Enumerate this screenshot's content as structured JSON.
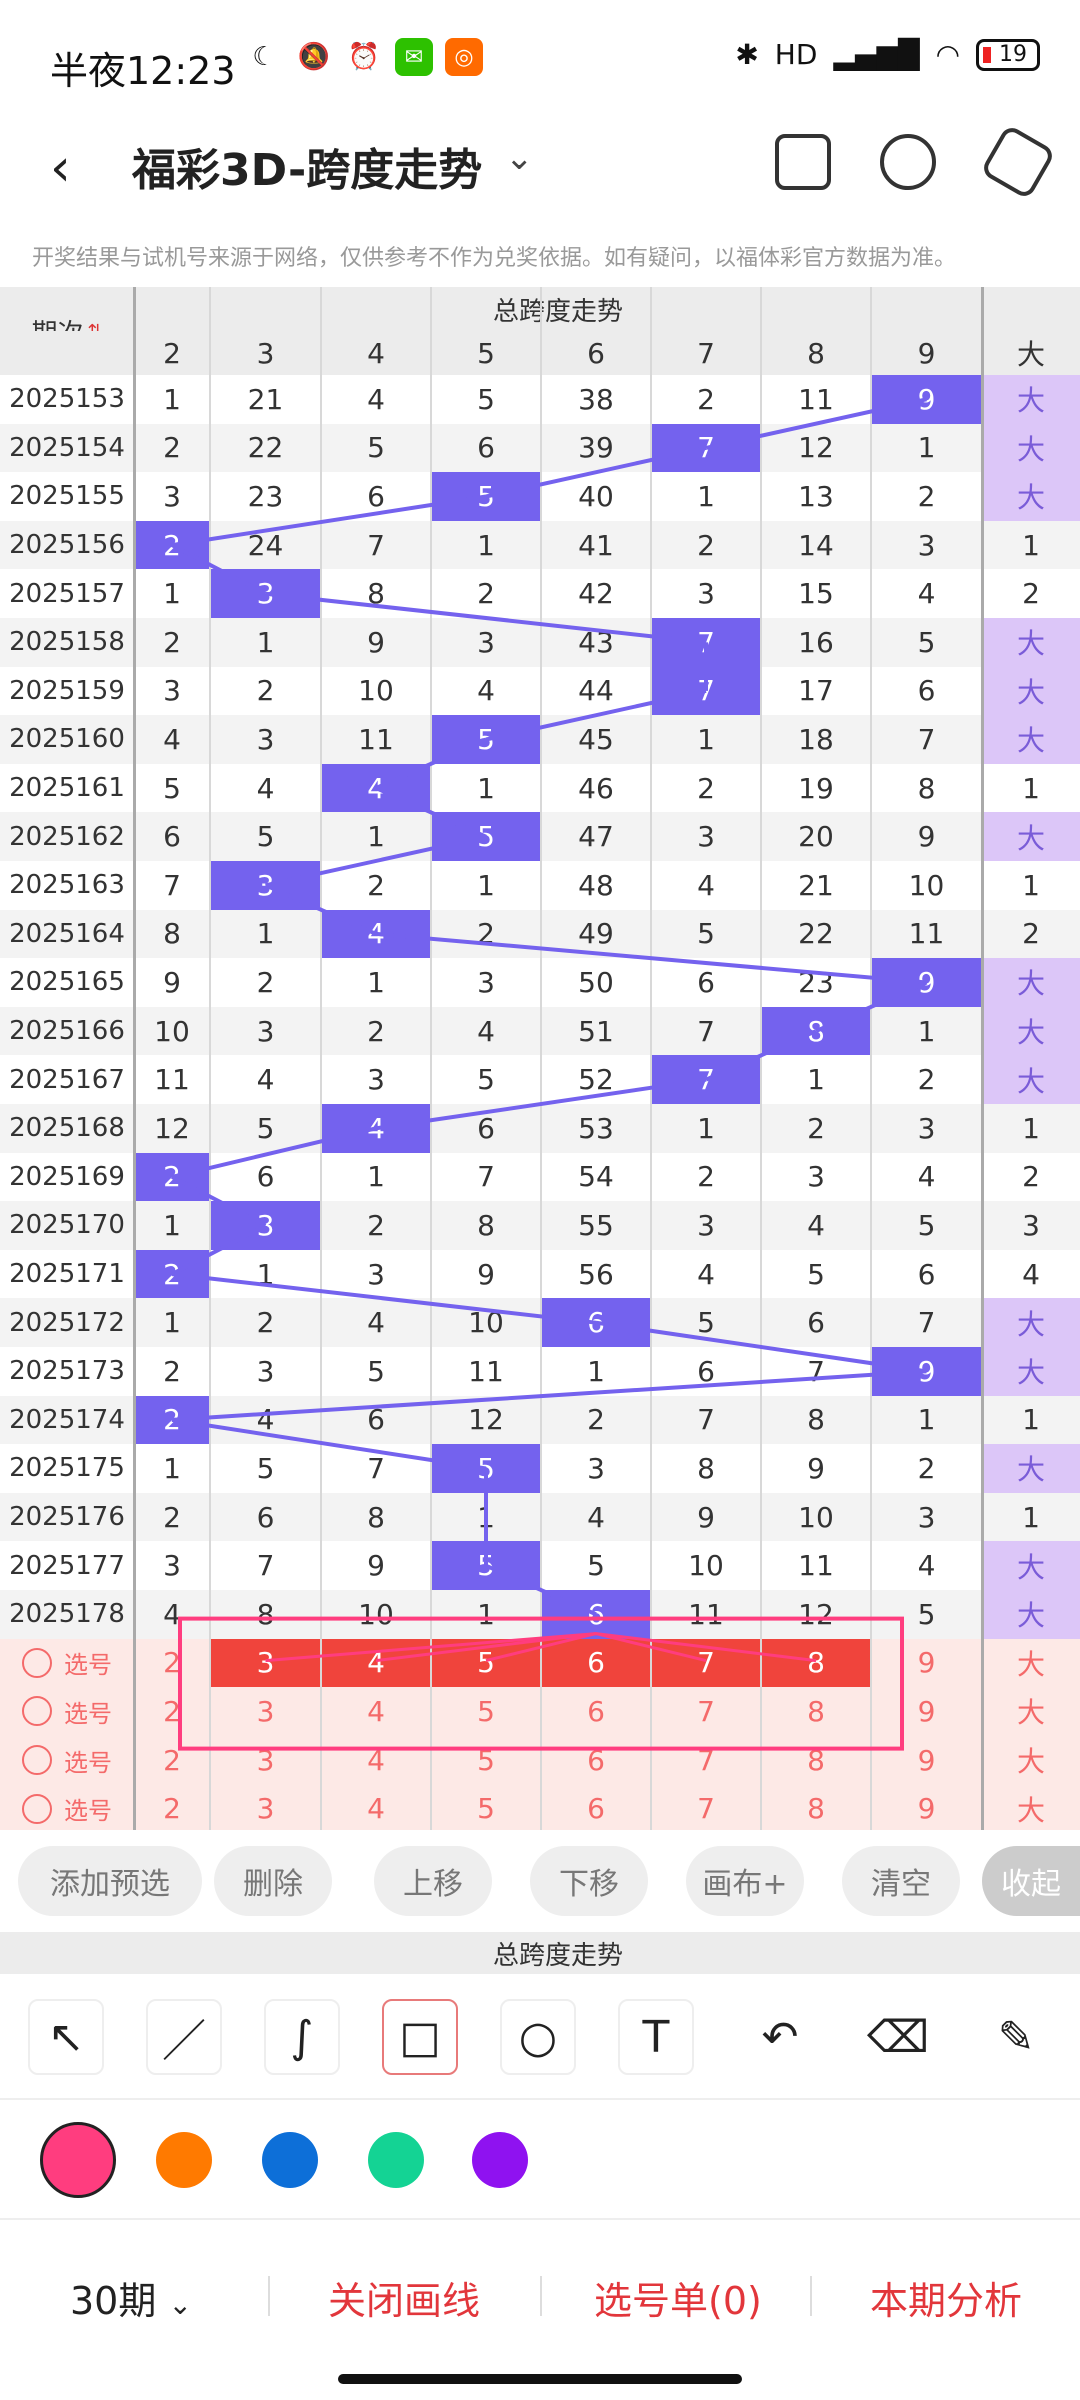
{
  "status_bar": {
    "time": "半夜12:23",
    "icons": [
      "moon-icon",
      "bell-off-icon",
      "alarm-icon",
      "wechat-icon",
      "app-icon",
      "bluetooth-icon",
      "signal-icon",
      "wifi-icon",
      "battery-icon"
    ],
    "network": "HD",
    "battery": "19"
  },
  "header": {
    "title": "福彩3D-跨度走势",
    "back_icon": "back-arrow-icon",
    "dropdown_icon": "chevron-down-icon",
    "right_icons": [
      "layout-icon",
      "share-icon",
      "settings-icon"
    ]
  },
  "disclaimer": "开奖结果与试机号来源于网络，仅供参考不作为兑奖依据。如有疑问，以福体彩官方数据为准。",
  "table": {
    "header_title": "总跨度走势",
    "period_label": "期次",
    "columns": [
      "2",
      "3",
      "4",
      "5",
      "6",
      "7",
      "8",
      "9"
    ],
    "extra_col": "大",
    "rows": [
      {
        "period": "2025153",
        "vals": [
          "1",
          "21",
          "4",
          "5",
          "38",
          "2",
          "11",
          "9"
        ],
        "hit": 7,
        "extra": "大"
      },
      {
        "period": "2025154",
        "vals": [
          "2",
          "22",
          "5",
          "6",
          "39",
          "7",
          "12",
          "1"
        ],
        "hit": 5,
        "extra": "大"
      },
      {
        "period": "2025155",
        "vals": [
          "3",
          "23",
          "6",
          "5",
          "40",
          "1",
          "13",
          "2"
        ],
        "hit": 3,
        "extra": "大"
      },
      {
        "period": "2025156",
        "vals": [
          "2",
          "24",
          "7",
          "1",
          "41",
          "2",
          "14",
          "3"
        ],
        "hit": 0,
        "extra": "1"
      },
      {
        "period": "2025157",
        "vals": [
          "1",
          "3",
          "8",
          "2",
          "42",
          "3",
          "15",
          "4"
        ],
        "hit": 1,
        "extra": "2"
      },
      {
        "period": "2025158",
        "vals": [
          "2",
          "1",
          "9",
          "3",
          "43",
          "7",
          "16",
          "5"
        ],
        "hit": 5,
        "extra": "大"
      },
      {
        "period": "2025159",
        "vals": [
          "3",
          "2",
          "10",
          "4",
          "44",
          "7",
          "17",
          "6"
        ],
        "hit": 5,
        "extra": "大"
      },
      {
        "period": "2025160",
        "vals": [
          "4",
          "3",
          "11",
          "5",
          "45",
          "1",
          "18",
          "7"
        ],
        "hit": 3,
        "extra": "大"
      },
      {
        "period": "2025161",
        "vals": [
          "5",
          "4",
          "4",
          "1",
          "46",
          "2",
          "19",
          "8"
        ],
        "hit": 2,
        "extra": "1"
      },
      {
        "period": "2025162",
        "vals": [
          "6",
          "5",
          "1",
          "5",
          "47",
          "3",
          "20",
          "9"
        ],
        "hit": 3,
        "extra": "大"
      },
      {
        "period": "2025163",
        "vals": [
          "7",
          "3",
          "2",
          "1",
          "48",
          "4",
          "21",
          "10"
        ],
        "hit": 1,
        "extra": "1"
      },
      {
        "period": "2025164",
        "vals": [
          "8",
          "1",
          "4",
          "2",
          "49",
          "5",
          "22",
          "11"
        ],
        "hit": 2,
        "extra": "2"
      },
      {
        "period": "2025165",
        "vals": [
          "9",
          "2",
          "1",
          "3",
          "50",
          "6",
          "23",
          "9"
        ],
        "hit": 7,
        "extra": "大"
      },
      {
        "period": "2025166",
        "vals": [
          "10",
          "3",
          "2",
          "4",
          "51",
          "7",
          "8",
          "1"
        ],
        "hit": 6,
        "extra": "大"
      },
      {
        "period": "2025167",
        "vals": [
          "11",
          "4",
          "3",
          "5",
          "52",
          "7",
          "1",
          "2"
        ],
        "hit": 5,
        "extra": "大"
      },
      {
        "period": "2025168",
        "vals": [
          "12",
          "5",
          "4",
          "6",
          "53",
          "1",
          "2",
          "3"
        ],
        "hit": 2,
        "extra": "1"
      },
      {
        "period": "2025169",
        "vals": [
          "2",
          "6",
          "1",
          "7",
          "54",
          "2",
          "3",
          "4"
        ],
        "hit": 0,
        "extra": "2"
      },
      {
        "period": "2025170",
        "vals": [
          "1",
          "3",
          "2",
          "8",
          "55",
          "3",
          "4",
          "5"
        ],
        "hit": 1,
        "extra": "3"
      },
      {
        "period": "2025171",
        "vals": [
          "2",
          "1",
          "3",
          "9",
          "56",
          "4",
          "5",
          "6"
        ],
        "hit": 0,
        "extra": "4"
      },
      {
        "period": "2025172",
        "vals": [
          "1",
          "2",
          "4",
          "10",
          "6",
          "5",
          "6",
          "7"
        ],
        "hit": 4,
        "extra": "大"
      },
      {
        "period": "2025173",
        "vals": [
          "2",
          "3",
          "5",
          "11",
          "1",
          "6",
          "7",
          "9"
        ],
        "hit": 7,
        "extra": "大"
      },
      {
        "period": "2025174",
        "vals": [
          "2",
          "4",
          "6",
          "12",
          "2",
          "7",
          "8",
          "1"
        ],
        "hit": 0,
        "extra": "1"
      },
      {
        "period": "2025175",
        "vals": [
          "1",
          "5",
          "7",
          "5",
          "3",
          "8",
          "9",
          "2"
        ],
        "hit": 3,
        "extra": "大"
      },
      {
        "period": "2025176",
        "vals": [
          "2",
          "6",
          "8",
          "1",
          "4",
          "9",
          "10",
          "3"
        ],
        "hit": -1,
        "extra": "1"
      },
      {
        "period": "2025177",
        "vals": [
          "3",
          "7",
          "9",
          "5",
          "5",
          "10",
          "11",
          "4"
        ],
        "hit": 3,
        "extra": "大"
      },
      {
        "period": "2025178",
        "vals": [
          "4",
          "8",
          "10",
          "1",
          "6",
          "11",
          "12",
          "5"
        ],
        "hit": 4,
        "extra": "大"
      }
    ],
    "select_rows": [
      {
        "label": "选号",
        "vals": [
          "2",
          "3",
          "4",
          "5",
          "6",
          "7",
          "8",
          "9"
        ],
        "extra": "大"
      },
      {
        "label": "选号",
        "vals": [
          "2",
          "3",
          "4",
          "5",
          "6",
          "7",
          "8",
          "9"
        ],
        "extra": "大"
      },
      {
        "label": "选号",
        "vals": [
          "2",
          "3",
          "4",
          "5",
          "6",
          "7",
          "8",
          "9"
        ],
        "extra": "大"
      },
      {
        "label": "选号",
        "vals": [
          "2",
          "3",
          "4",
          "5",
          "6",
          "7",
          "8",
          "9"
        ],
        "extra": "大"
      }
    ]
  },
  "actions": {
    "add": "添加预选",
    "delete": "删除",
    "up": "上移",
    "down": "下移",
    "canvas": "画布+",
    "clear": "清空",
    "collapse": "收起"
  },
  "mini_header": "总跨度走势",
  "draw_tools": [
    "arrow-tool-icon",
    "line-tool-icon",
    "curve-tool-icon",
    "rectangle-tool-icon",
    "circle-tool-icon",
    "text-tool-icon",
    "undo-icon",
    "eraser-icon",
    "clear-brush-icon"
  ],
  "colors": [
    "#ff3d7f",
    "#ff7a00",
    "#0d6fd8",
    "#14d394",
    "#8f12f0"
  ],
  "bottom_bar": {
    "period_select": "30期",
    "close_lines": "关闭画线",
    "selection_list": "选号单(0)",
    "analysis": "本期分析"
  }
}
